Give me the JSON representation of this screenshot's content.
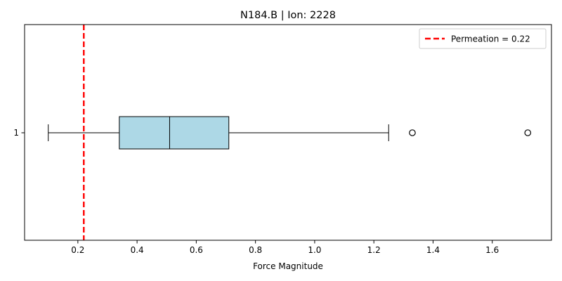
{
  "chart_data": {
    "type": "boxplot",
    "orientation": "horizontal",
    "title": "N184.B | Ion: 2228",
    "xlabel": "Force Magnitude",
    "ylabel": "",
    "xlim": [
      0.02,
      1.8
    ],
    "x_ticks": [
      0.2,
      0.4,
      0.6,
      0.8,
      1.0,
      1.2,
      1.4,
      1.6
    ],
    "x_tick_labels": [
      "0.2",
      "0.4",
      "0.6",
      "0.8",
      "1.0",
      "1.2",
      "1.4",
      "1.6"
    ],
    "y_tick_labels": [
      "1"
    ],
    "box": {
      "whisker_low": 0.1,
      "q1": 0.34,
      "median": 0.51,
      "q3": 0.71,
      "whisker_high": 1.25,
      "outliers": [
        1.33,
        1.72
      ],
      "fill_color": "#add8e6"
    },
    "reference_line": {
      "x": 0.22,
      "label": "Permeation = 0.22",
      "color": "#ff0000",
      "style": "dashed"
    },
    "legend": {
      "placement": "top-right",
      "entries": [
        "Permeation = 0.22"
      ]
    },
    "grid": false
  }
}
